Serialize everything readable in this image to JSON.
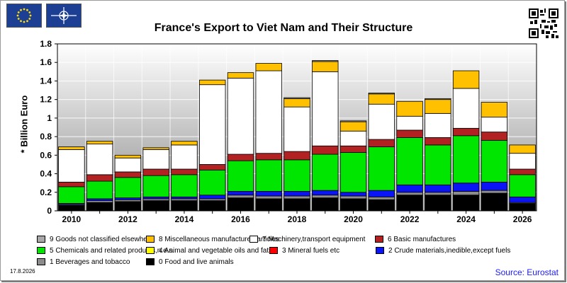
{
  "chart_data": {
    "type": "stacked-bar",
    "title": "France's Export to Viet Nam and Their Structure",
    "ylabel": "* Billion Euro",
    "xlabel": "",
    "ylim": [
      0,
      1.8
    ],
    "yticks": [
      "0",
      "0.2",
      "0.4",
      "0.6",
      "0.8",
      "1",
      "1.2",
      "1.4",
      "1.6",
      "1.8"
    ],
    "categories": [
      "2010",
      "2011",
      "2012",
      "2013",
      "2014",
      "2015",
      "2016",
      "2017",
      "2018",
      "2019",
      "2020",
      "2021",
      "2022",
      "2023",
      "2024",
      "2025",
      "2026"
    ],
    "xtick_labels": [
      "2010",
      "",
      "2012",
      "",
      "2014",
      "",
      "2016",
      "",
      "2018",
      "",
      "2020",
      "",
      "2022",
      "",
      "2024",
      "",
      "2026"
    ],
    "grid": true,
    "legend_placement": "bottom",
    "series": [
      {
        "name": "0 Food and live animals",
        "color": "#000000",
        "values": [
          0.06,
          0.09,
          0.1,
          0.11,
          0.11,
          0.11,
          0.14,
          0.13,
          0.13,
          0.14,
          0.13,
          0.12,
          0.17,
          0.17,
          0.17,
          0.19,
          0.08
        ]
      },
      {
        "name": "1 Beverages and tobacco",
        "color": "#8c8c8c",
        "values": [
          0.01,
          0.02,
          0.02,
          0.02,
          0.02,
          0.02,
          0.03,
          0.03,
          0.03,
          0.03,
          0.03,
          0.03,
          0.03,
          0.03,
          0.04,
          0.03,
          0.01
        ]
      },
      {
        "name": "2 Crude materials,inedible,except fuels",
        "color": "#0a14f5",
        "values": [
          0.01,
          0.02,
          0.02,
          0.02,
          0.02,
          0.04,
          0.04,
          0.05,
          0.05,
          0.05,
          0.04,
          0.07,
          0.08,
          0.08,
          0.09,
          0.09,
          0.06
        ]
      },
      {
        "name": "3 Mineral fuels etc",
        "color": "#ff0000",
        "values": [
          0,
          0,
          0,
          0,
          0,
          0,
          0,
          0,
          0,
          0,
          0,
          0,
          0,
          0,
          0,
          0,
          0
        ]
      },
      {
        "name": "4 Animal and vegetable oils and fats",
        "color": "#ffff00",
        "values": [
          0,
          0,
          0,
          0,
          0,
          0,
          0,
          0,
          0,
          0,
          0,
          0,
          0,
          0,
          0,
          0,
          0
        ]
      },
      {
        "name": "5 Chemicals and related products,n.e.s.",
        "color": "#00e600",
        "values": [
          0.18,
          0.19,
          0.22,
          0.23,
          0.24,
          0.27,
          0.33,
          0.34,
          0.34,
          0.39,
          0.43,
          0.47,
          0.51,
          0.43,
          0.51,
          0.45,
          0.24
        ]
      },
      {
        "name": "6 Basic manufactures",
        "color": "#b22222",
        "values": [
          0.05,
          0.07,
          0.06,
          0.07,
          0.06,
          0.06,
          0.07,
          0.07,
          0.09,
          0.09,
          0.07,
          0.08,
          0.08,
          0.08,
          0.08,
          0.09,
          0.06
        ]
      },
      {
        "name": "7 Machinery,transport equipment",
        "color": "#ffffff",
        "values": [
          0.35,
          0.33,
          0.15,
          0.21,
          0.26,
          0.86,
          0.82,
          0.89,
          0.48,
          0.8,
          0.16,
          0.38,
          0.15,
          0.26,
          0.43,
          0.16,
          0.17
        ]
      },
      {
        "name": "8 Miscellaneous manufactured articles",
        "color": "#ffc000",
        "values": [
          0.03,
          0.03,
          0.03,
          0.02,
          0.04,
          0.05,
          0.06,
          0.08,
          0.09,
          0.11,
          0.1,
          0.11,
          0.16,
          0.15,
          0.19,
          0.16,
          0.09
        ]
      },
      {
        "name": "9 Goods not classified elsewhere",
        "color": "#a8a8a8",
        "values": [
          0,
          0,
          0,
          0,
          0,
          0,
          0,
          0,
          0.01,
          0.01,
          0.01,
          0.01,
          0,
          0.01,
          0,
          0,
          0
        ]
      }
    ]
  },
  "legend_rows": [
    [
      "9 Goods not classified elsewhere",
      "8 Miscellaneous manufactured articles",
      "7 Machinery,transport equipment",
      "6 Basic manufactures"
    ],
    [
      "5 Chemicals and related products,n.e.s.",
      "4 Animal and vegetable oils and fats",
      "3 Mineral fuels etc",
      "2 Crude materials,inedible,except fuels"
    ],
    [
      "1 Beverages and tobacco",
      "0 Food and live animals"
    ]
  ],
  "legend_colors": {
    "9 Goods not classified elsewhere": "#a8a8a8",
    "8 Miscellaneous manufactured articles": "#ffc000",
    "7 Machinery,transport equipment": "#ffffff",
    "6 Basic manufactures": "#b22222",
    "5 Chemicals and related products,n.e.s.": "#00e600",
    "4 Animal and vegetable oils and fats": "#ffff00",
    "3 Mineral fuels etc": "#ff0000",
    "2 Crude materials,inedible,except fuels": "#0a14f5",
    "1 Beverages and tobacco": "#8c8c8c",
    "0 Food and live animals": "#000000"
  },
  "footer": {
    "date": "17.8.2026",
    "source": "Source: Eurostat"
  },
  "icons": [
    "eu-flag-icon",
    "nato-flag-icon",
    "qr-code-icon"
  ]
}
